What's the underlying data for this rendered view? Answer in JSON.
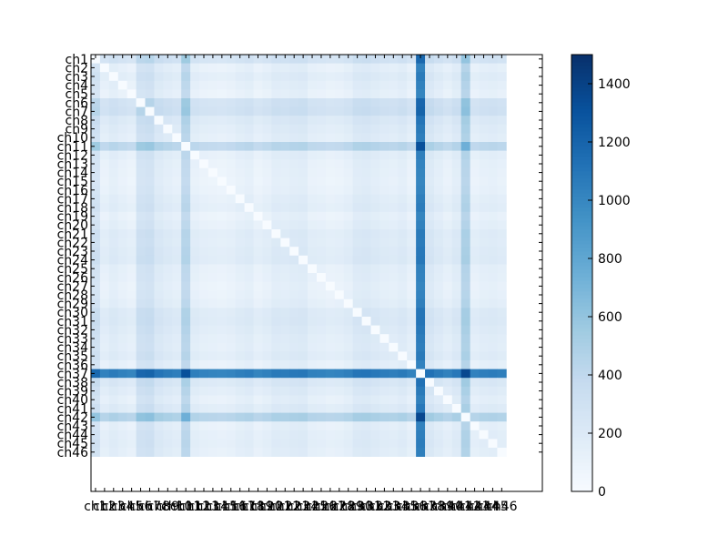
{
  "chart_data": {
    "type": "heatmap",
    "title": "",
    "xlabel": "",
    "ylabel": "",
    "labels": [
      "ch1",
      "ch2",
      "ch3",
      "ch4",
      "ch5",
      "ch6",
      "ch7",
      "ch8",
      "ch9",
      "ch10",
      "ch11",
      "ch12",
      "ch13",
      "ch14",
      "ch15",
      "ch16",
      "ch17",
      "ch18",
      "ch19",
      "ch20",
      "ch21",
      "ch22",
      "ch23",
      "ch24",
      "ch25",
      "ch26",
      "ch27",
      "ch28",
      "ch29",
      "ch30",
      "ch31",
      "ch32",
      "ch33",
      "ch34",
      "ch35",
      "ch36",
      "ch37",
      "ch38",
      "ch39",
      "ch40",
      "ch41",
      "ch42",
      "ch43",
      "ch44",
      "ch45",
      "ch46"
    ],
    "matrix_size": 46,
    "axis_slots": 50,
    "channel_levels": [
      250,
      60,
      110,
      70,
      40,
      260,
      280,
      160,
      120,
      90,
      420,
      80,
      50,
      40,
      30,
      45,
      80,
      100,
      40,
      70,
      120,
      110,
      130,
      140,
      70,
      60,
      40,
      50,
      80,
      150,
      160,
      130,
      100,
      90,
      120,
      60,
      1200,
      180,
      120,
      70,
      130,
      480,
      60,
      90,
      100,
      80
    ],
    "colormap": "Blues",
    "colorbar": {
      "min": 0,
      "max": 1500,
      "ticks": [
        0,
        200,
        400,
        600,
        800,
        1000,
        1200,
        1400
      ]
    },
    "diagonal": 0,
    "grid": false,
    "legend": "none",
    "colors": {
      "low": "#f7fbff",
      "high": "#08306b"
    }
  }
}
